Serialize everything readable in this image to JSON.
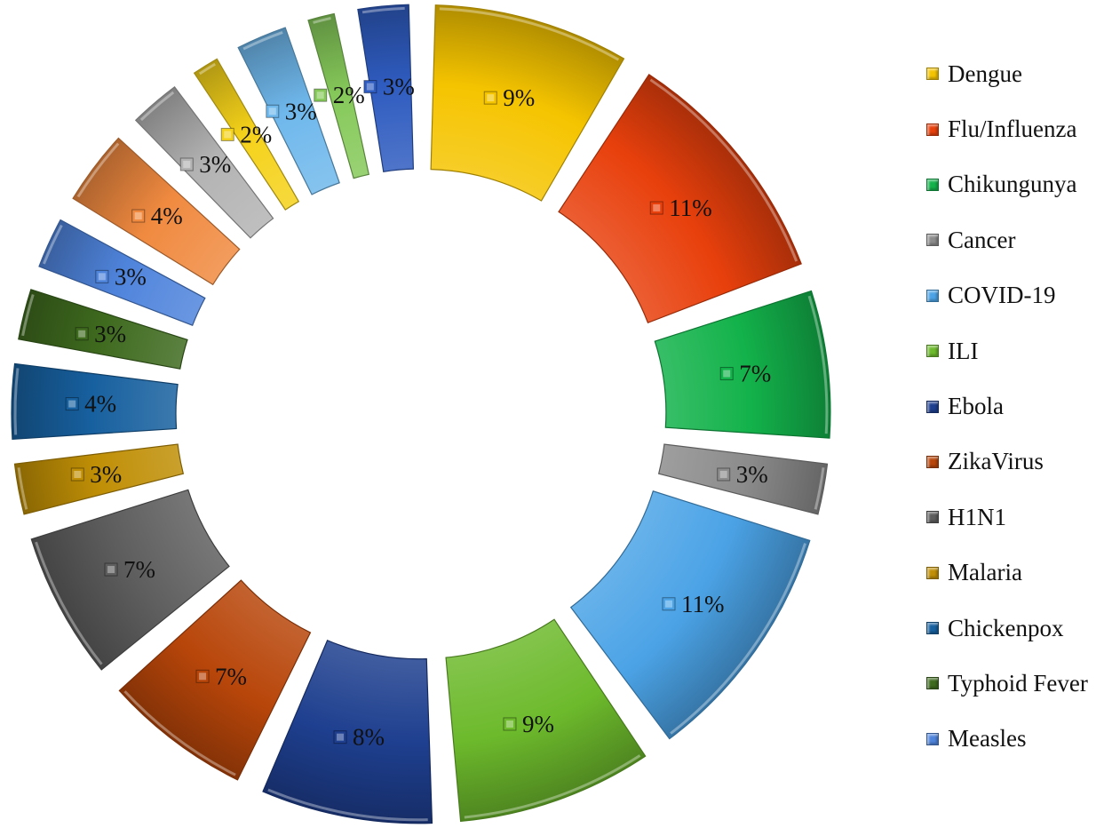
{
  "chart_data": {
    "type": "pie",
    "variant": "exploded-doughnut",
    "title": "",
    "legend_position": "right",
    "series": [
      {
        "name": "Dengue",
        "value": 9,
        "label": "9%",
        "color": "#F5C400"
      },
      {
        "name": "Flu/Influenza",
        "value": 11,
        "label": "11%",
        "color": "#E8400C"
      },
      {
        "name": "Chikungunya",
        "value": 7,
        "label": "7%",
        "color": "#13B24B"
      },
      {
        "name": "Cancer",
        "value": 3,
        "label": "3%",
        "color": "#8C8C8C"
      },
      {
        "name": "COVID-19",
        "value": 11,
        "label": "11%",
        "color": "#4BA3E6"
      },
      {
        "name": "ILI",
        "value": 9,
        "label": "9%",
        "color": "#6DBA2C"
      },
      {
        "name": "Ebola",
        "value": 8,
        "label": "8%",
        "color": "#1E3F8F"
      },
      {
        "name": "ZikaVirus",
        "value": 7,
        "label": "7%",
        "color": "#B8460A"
      },
      {
        "name": "H1N1",
        "value": 7,
        "label": "7%",
        "color": "#5E5E5E"
      },
      {
        "name": "Malaria",
        "value": 3,
        "label": "3%",
        "color": "#C08F06"
      },
      {
        "name": "Chickenpox",
        "value": 4,
        "label": "4%",
        "color": "#17609F"
      },
      {
        "name": "Typhoid Fever",
        "value": 3,
        "label": "3%",
        "color": "#3E6A1E"
      },
      {
        "name": "Measles",
        "value": 3,
        "label": "3%",
        "color": "#4F84DC"
      },
      {
        "name": "",
        "value": 4,
        "label": "4%",
        "color": "#F08A40"
      },
      {
        "name": "",
        "value": 3,
        "label": "3%",
        "color": "#B3B3B3"
      },
      {
        "name": "",
        "value": 2,
        "label": "2%",
        "color": "#F5D21A"
      },
      {
        "name": "",
        "value": 3,
        "label": "3%",
        "color": "#6FB8EC"
      },
      {
        "name": "",
        "value": 2,
        "label": "2%",
        "color": "#86C95A"
      },
      {
        "name": "",
        "value": 3,
        "label": "3%",
        "color": "#2F5CC0"
      }
    ]
  },
  "legend": {
    "items": [
      {
        "label": "Dengue",
        "color": "#F5C400"
      },
      {
        "label": "Flu/Influenza",
        "color": "#E8400C"
      },
      {
        "label": "Chikungunya",
        "color": "#13B24B"
      },
      {
        "label": "Cancer",
        "color": "#8C8C8C"
      },
      {
        "label": "COVID-19",
        "color": "#4BA3E6"
      },
      {
        "label": "ILI",
        "color": "#6DBA2C"
      },
      {
        "label": "Ebola",
        "color": "#1E3F8F"
      },
      {
        "label": "ZikaVirus",
        "color": "#B8460A"
      },
      {
        "label": "H1N1",
        "color": "#5E5E5E"
      },
      {
        "label": "Malaria",
        "color": "#C08F06"
      },
      {
        "label": "Chickenpox",
        "color": "#17609F"
      },
      {
        "label": "Typhoid Fever",
        "color": "#3E6A1E"
      },
      {
        "label": "Measles",
        "color": "#4F84DC"
      }
    ]
  }
}
